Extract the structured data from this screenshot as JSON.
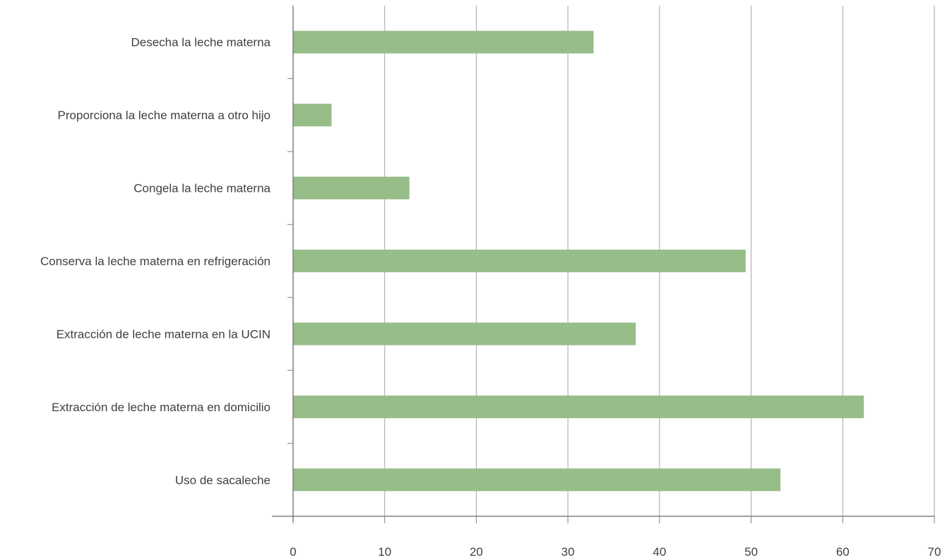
{
  "chart_data": {
    "type": "bar",
    "orientation": "horizontal",
    "categories": [
      "Desecha la leche materna",
      "Proporciona la leche materna a otro hijo",
      "Congela la leche materna",
      "Conserva la leche materna en refrigeración",
      "Extracción de leche materna en la UCIN",
      "Extracción de leche materna en domicilio",
      "Uso de sacaleche"
    ],
    "values": [
      32.8,
      4.2,
      12.7,
      49.4,
      37.4,
      62.3,
      53.2
    ],
    "xlim": [
      0,
      70
    ],
    "x_ticks": [
      0,
      10,
      20,
      30,
      40,
      50,
      60,
      70
    ],
    "title": "",
    "xlabel": "",
    "ylabel": "",
    "grid": true,
    "legend": "none",
    "colors": {
      "bar": "#97bd88",
      "grid": "#a6a6a6",
      "axis": "#808080",
      "text": "#404040"
    }
  }
}
